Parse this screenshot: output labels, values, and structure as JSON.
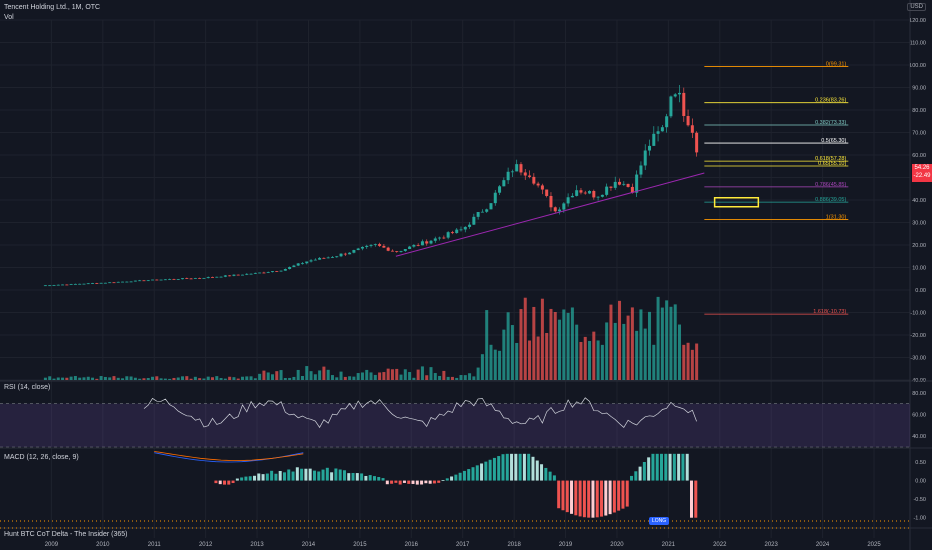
{
  "header": {
    "title": "Tencent Holding Ltd., 1M, OTC",
    "vol_label": "Vol",
    "currency": "USD",
    "last_price": "54.26",
    "last_change": "-22.49"
  },
  "indicators": {
    "rsi_label": "RSI (14, close)",
    "macd_label": "MACD (12, 26, close, 9)",
    "cot_label": "Hunt BTC CoT Delta - The Insider (365)",
    "long_label": "LONG"
  },
  "colors": {
    "background": "#131722",
    "up": "#26a69a",
    "down": "#ef5350",
    "grid": "#1e222d",
    "trendline": "#9c27b0",
    "rsi_band": "#7e57c2",
    "fib_zone_box": "#ffeb3b"
  },
  "chart_data": {
    "type": "candlestick",
    "x_axis": {
      "tick_labels": [
        "2009",
        "2010",
        "2011",
        "2012",
        "2013",
        "2014",
        "2015",
        "2016",
        "2017",
        "2018",
        "2019",
        "2020",
        "2021",
        "2022",
        "2023",
        "2024",
        "2025"
      ]
    },
    "price_axis": {
      "tick_labels": [
        "-40.00",
        "-30.00",
        "-20.00",
        "-10.00",
        "0.00",
        "10.00",
        "20.00",
        "30.00",
        "40.00",
        "50.00",
        "60.00",
        "70.00",
        "80.00",
        "90.00",
        "100.00",
        "110.00",
        "120.00"
      ],
      "range": [
        -40,
        120
      ]
    },
    "price_waypoints": [
      {
        "year": 2008.8,
        "close": 2
      },
      {
        "year": 2010.0,
        "close": 3.2
      },
      {
        "year": 2011.0,
        "close": 4.5
      },
      {
        "year": 2012.0,
        "close": 5.5
      },
      {
        "year": 2013.0,
        "close": 7.5
      },
      {
        "year": 2013.5,
        "close": 9
      },
      {
        "year": 2014.0,
        "close": 13
      },
      {
        "year": 2014.5,
        "close": 15
      },
      {
        "year": 2015.3,
        "close": 20
      },
      {
        "year": 2015.7,
        "close": 17
      },
      {
        "year": 2016.5,
        "close": 23
      },
      {
        "year": 2017.0,
        "close": 27
      },
      {
        "year": 2017.5,
        "close": 38
      },
      {
        "year": 2018.0,
        "close": 55
      },
      {
        "year": 2018.3,
        "close": 52
      },
      {
        "year": 2018.8,
        "close": 35
      },
      {
        "year": 2019.2,
        "close": 45
      },
      {
        "year": 2019.6,
        "close": 42
      },
      {
        "year": 2020.0,
        "close": 49
      },
      {
        "year": 2020.3,
        "close": 45
      },
      {
        "year": 2020.6,
        "close": 64
      },
      {
        "year": 2020.9,
        "close": 72
      },
      {
        "year": 2021.1,
        "close": 92
      },
      {
        "year": 2021.3,
        "close": 80
      },
      {
        "year": 2021.5,
        "close": 70
      },
      {
        "year": 2021.6,
        "close": 54.26
      }
    ],
    "fibonacci": [
      {
        "label": "0(99.31)",
        "value": 99.31,
        "color": "#ff9800"
      },
      {
        "label": "0.236(83.26)",
        "value": 83.26,
        "color": "#ffeb3b"
      },
      {
        "label": "0.382(73.33)",
        "value": 73.33,
        "color": "#80cbc4"
      },
      {
        "label": "0.5(65.30)",
        "value": 65.3,
        "color": "#ffffff"
      },
      {
        "label": "0.618(57.28)",
        "value": 57.28,
        "color": "#ffeb3b"
      },
      {
        "label": "0.65(55.10)",
        "value": 55.1,
        "color": "#ffeb3b"
      },
      {
        "label": "0.786(45.85)",
        "value": 45.85,
        "color": "#ab47bc"
      },
      {
        "label": "0.886(39.05)",
        "value": 39.05,
        "color": "#26a69a"
      },
      {
        "label": "1(31.30)",
        "value": 31.3,
        "color": "#ff9800"
      },
      {
        "label": "1.618(-10.73)",
        "value": -10.73,
        "color": "#ef5350"
      }
    ],
    "trendline": {
      "from": {
        "year": 2015.7,
        "value": 15
      },
      "to": {
        "year": 2021.7,
        "value": 52
      }
    },
    "rsi": {
      "tick_labels": [
        "80.00",
        "60.00",
        "40.00"
      ],
      "range": [
        30,
        90
      ],
      "upper": 70,
      "lower": 30
    },
    "macd": {
      "tick_labels": [
        "0.50",
        "0.00",
        "-0.50",
        "-1.00"
      ],
      "range": [
        -1.25,
        0.85
      ]
    },
    "volume_note": "relative volume bars share the price pane"
  }
}
